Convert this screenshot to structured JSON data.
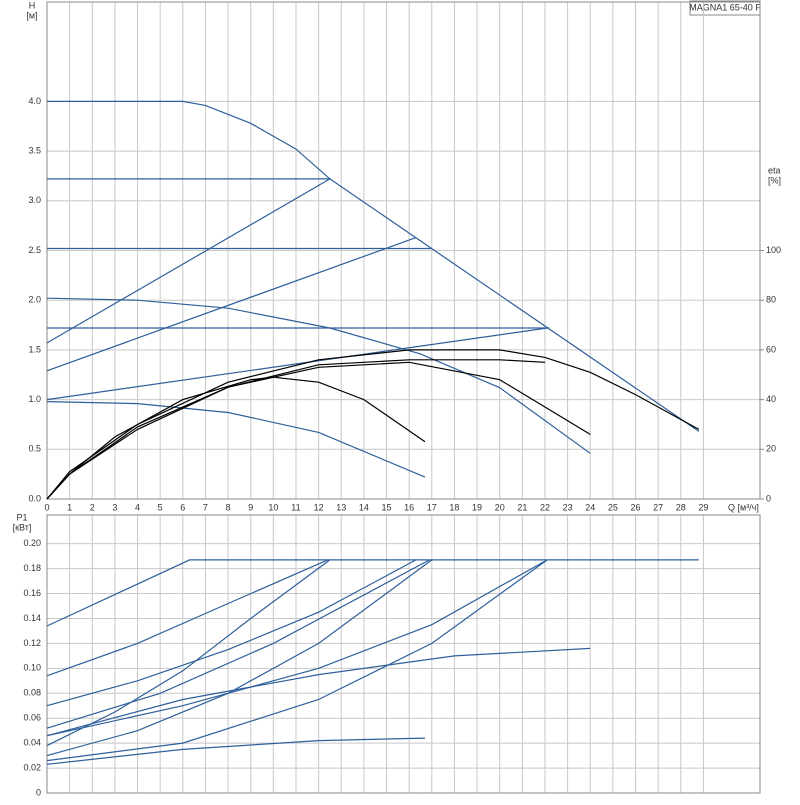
{
  "chart_data": [
    {
      "type": "line",
      "title": "MAGNA1 65-40 F",
      "y_label": "H",
      "y_unit": "[м]",
      "y2_label": "eta",
      "y2_unit": "[%]",
      "x_label": "Q [м³/ч]",
      "xlim": [
        0,
        31.5
      ],
      "xticks": [
        0,
        1,
        2,
        3,
        4,
        5,
        6,
        7,
        8,
        9,
        10,
        11,
        12,
        13,
        14,
        15,
        16,
        17,
        18,
        19,
        20,
        21,
        22,
        23,
        24,
        25,
        26,
        27,
        28,
        29
      ],
      "ylim": [
        0,
        5
      ],
      "yticks": [
        {
          "value": 0,
          "label": "0.0"
        },
        0.5,
        {
          "value": 1,
          "label": "1.0"
        },
        1.5,
        {
          "value": 2,
          "label": "2.0"
        },
        2.5,
        {
          "value": 3,
          "label": "3.0"
        },
        3.5,
        {
          "value": 4,
          "label": "4.0"
        }
      ],
      "y2lim": [
        0,
        200
      ],
      "y2ticks": [
        0,
        20,
        40,
        60,
        80,
        100
      ],
      "grid": true,
      "series": [
        {
          "color": "#2e5f9a",
          "x": [
            0,
            6,
            7,
            9,
            11,
            12.5,
            28.8
          ],
          "values": [
            4.0,
            4.0,
            3.96,
            3.78,
            3.52,
            3.22,
            0.68
          ]
        },
        {
          "color": "#2e5f9a",
          "x": [
            0,
            12.5
          ],
          "values": [
            3.22,
            3.22
          ]
        },
        {
          "color": "#2e5f9a",
          "x": [
            0,
            17
          ],
          "values": [
            2.52,
            2.52
          ]
        },
        {
          "color": "#2e5f9a",
          "x": [
            0,
            22.2
          ],
          "values": [
            1.72,
            1.72
          ]
        },
        {
          "color": "#2e5f9a",
          "x": [
            0,
            12.5
          ],
          "values": [
            1.57,
            3.22
          ]
        },
        {
          "color": "#2e5f9a",
          "x": [
            0,
            16.3
          ],
          "values": [
            1.29,
            2.63
          ]
        },
        {
          "color": "#2e5f9a",
          "x": [
            0,
            22.1
          ],
          "values": [
            1.0,
            1.72
          ]
        },
        {
          "color": "#2e5f9a",
          "x": [
            0,
            4,
            8,
            12.5,
            16.5,
            20,
            24
          ],
          "values": [
            2.02,
            2.0,
            1.92,
            1.72,
            1.46,
            1.12,
            0.46
          ]
        },
        {
          "color": "#2e5f9a",
          "x": [
            0,
            4,
            8,
            12,
            16.7
          ],
          "values": [
            0.98,
            0.96,
            0.87,
            0.67,
            0.22
          ]
        },
        {
          "color": "#000000",
          "axis": "y2",
          "x": [
            0,
            1,
            3,
            6,
            9,
            10,
            12,
            14,
            16.7
          ],
          "values": [
            0,
            10,
            25,
            40,
            48,
            49,
            47,
            40,
            23
          ]
        },
        {
          "color": "#000000",
          "axis": "y2",
          "x": [
            0,
            1,
            4,
            8,
            12,
            16,
            20,
            24
          ],
          "values": [
            0,
            10,
            29,
            45,
            53,
            55,
            48,
            26
          ]
        },
        {
          "color": "#000000",
          "axis": "y2",
          "x": [
            0,
            1,
            4,
            8,
            12,
            16,
            20,
            22,
            24,
            26,
            28.8
          ],
          "values": [
            0,
            11,
            30,
            47,
            56,
            60,
            60,
            57,
            51,
            42,
            28
          ]
        },
        {
          "color": "#000000",
          "axis": "y2",
          "x": [
            0,
            1,
            4,
            8,
            12,
            16,
            20,
            22
          ],
          "values": [
            0,
            10,
            28,
            45,
            54,
            56,
            56,
            55
          ]
        }
      ]
    },
    {
      "type": "line",
      "y_label": "P1",
      "y_unit": "[кВт]",
      "xlim": [
        0,
        31.5
      ],
      "ylim": [
        0,
        0.223
      ],
      "yticks": [
        0,
        0.02,
        0.04,
        0.06,
        0.08,
        {
          "value": 0.1,
          "label": "0.10"
        },
        0.12,
        0.14,
        0.16,
        0.18,
        {
          "value": 0.2,
          "label": "0.20"
        }
      ],
      "grid": true,
      "series": [
        {
          "color": "#2e5f9a",
          "x": [
            0,
            6.3,
            28.8
          ],
          "values": [
            0.134,
            0.187,
            0.187
          ]
        },
        {
          "color": "#2e5f9a",
          "x": [
            0,
            4,
            8,
            12.4
          ],
          "values": [
            0.094,
            0.12,
            0.152,
            0.187
          ]
        },
        {
          "color": "#2e5f9a",
          "x": [
            0,
            4,
            8,
            12,
            16.3
          ],
          "values": [
            0.07,
            0.09,
            0.115,
            0.145,
            0.187
          ]
        },
        {
          "color": "#2e5f9a",
          "x": [
            0,
            5,
            10,
            16.9
          ],
          "values": [
            0.052,
            0.08,
            0.12,
            0.187
          ]
        },
        {
          "color": "#2e5f9a",
          "x": [
            0,
            6,
            12,
            17,
            22.1
          ],
          "values": [
            0.046,
            0.07,
            0.1,
            0.135,
            0.187
          ]
        },
        {
          "color": "#2e5f9a",
          "x": [
            0,
            3,
            6,
            9,
            12.5
          ],
          "values": [
            0.038,
            0.065,
            0.098,
            0.14,
            0.187
          ]
        },
        {
          "color": "#2e5f9a",
          "x": [
            0,
            4,
            8,
            12,
            17
          ],
          "values": [
            0.03,
            0.05,
            0.08,
            0.12,
            0.187
          ]
        },
        {
          "color": "#2e5f9a",
          "x": [
            0,
            6,
            12,
            17,
            22.1
          ],
          "values": [
            0.026,
            0.04,
            0.075,
            0.12,
            0.187
          ]
        },
        {
          "color": "#2e5f9a",
          "x": [
            0,
            6,
            12,
            18,
            24
          ],
          "values": [
            0.046,
            0.075,
            0.095,
            0.11,
            0.116
          ]
        },
        {
          "color": "#2e5f9a",
          "x": [
            0,
            6,
            12,
            16.7
          ],
          "values": [
            0.023,
            0.035,
            0.042,
            0.044
          ]
        }
      ]
    }
  ]
}
